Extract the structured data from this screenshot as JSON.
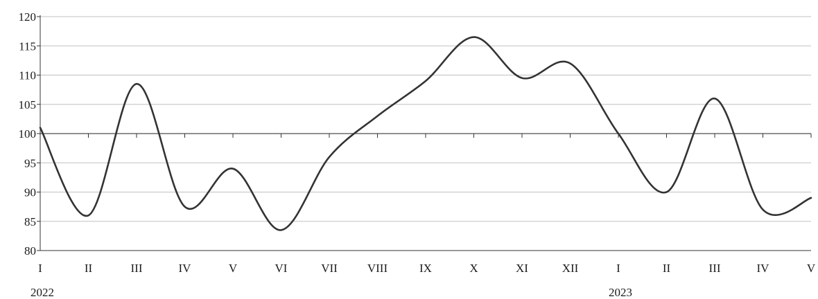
{
  "chart_data": {
    "type": "line",
    "title": "",
    "xlabel": "",
    "ylabel": "",
    "ylim": [
      80,
      120
    ],
    "yticks": [
      80,
      85,
      90,
      95,
      100,
      105,
      110,
      115,
      120
    ],
    "reference_line": 100,
    "grid": "horizontal",
    "line_color": "#333333",
    "grid_color": "#c0c0c0",
    "categories": [
      "I",
      "II",
      "III",
      "IV",
      "V",
      "VI",
      "VII",
      "VIII",
      "IX",
      "X",
      "XI",
      "XII",
      "I",
      "II",
      "III",
      "IV",
      "V"
    ],
    "year_labels": [
      {
        "label": "2022",
        "at_index": 0
      },
      {
        "label": "2023",
        "at_index": 12
      }
    ],
    "series": [
      {
        "values": [
          101,
          86,
          108.5,
          87.5,
          94,
          83.5,
          96,
          103,
          109,
          116.5,
          109.5,
          112,
          100,
          90,
          106,
          87,
          89
        ]
      }
    ]
  }
}
